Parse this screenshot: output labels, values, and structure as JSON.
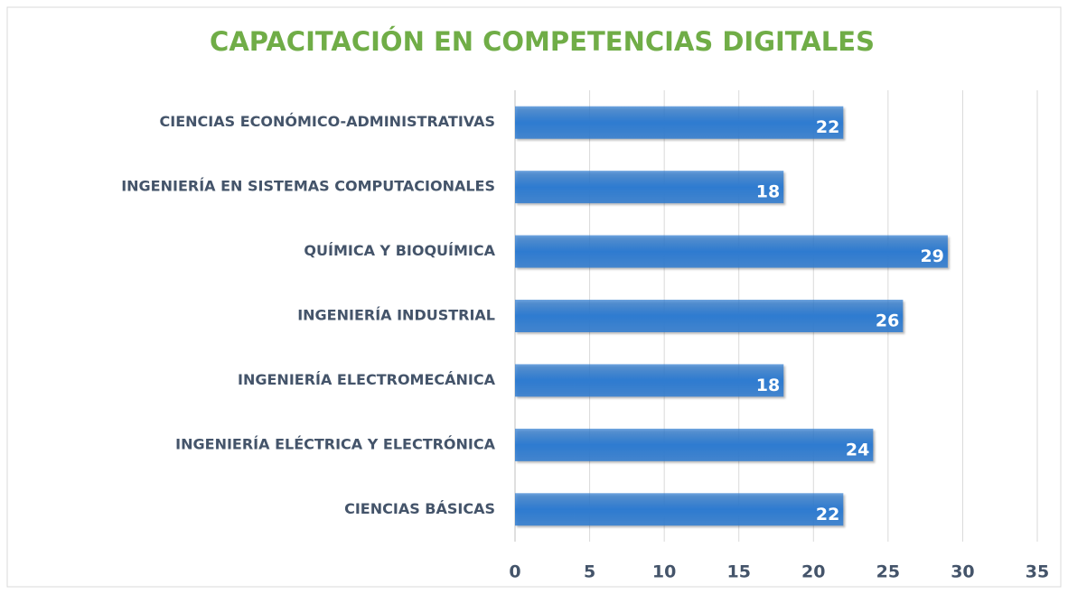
{
  "chart_data": {
    "type": "hbar",
    "title": "CAPACITACIÓN EN COMPETENCIAS DIGITALES",
    "categories": [
      "CIENCIAS ECONÓMICO-ADMINISTRATIVAS",
      "INGENIERÍA EN SISTEMAS COMPUTACIONALES",
      "QUÍMICA Y BIOQUÍMICA",
      "INGENIERÍA INDUSTRIAL",
      "INGENIERÍA ELECTROMECÁNICA",
      "INGENIERÍA ELÉCTRICA Y ELECTRÓNICA",
      "CIENCIAS BÁSICAS"
    ],
    "values": [
      22,
      18,
      29,
      26,
      18,
      24,
      22
    ],
    "color": "#2e7bd0",
    "xlim": [
      0,
      35
    ],
    "xticks": [
      0,
      5,
      10,
      15,
      20,
      25,
      30,
      35
    ],
    "grid": true
  }
}
